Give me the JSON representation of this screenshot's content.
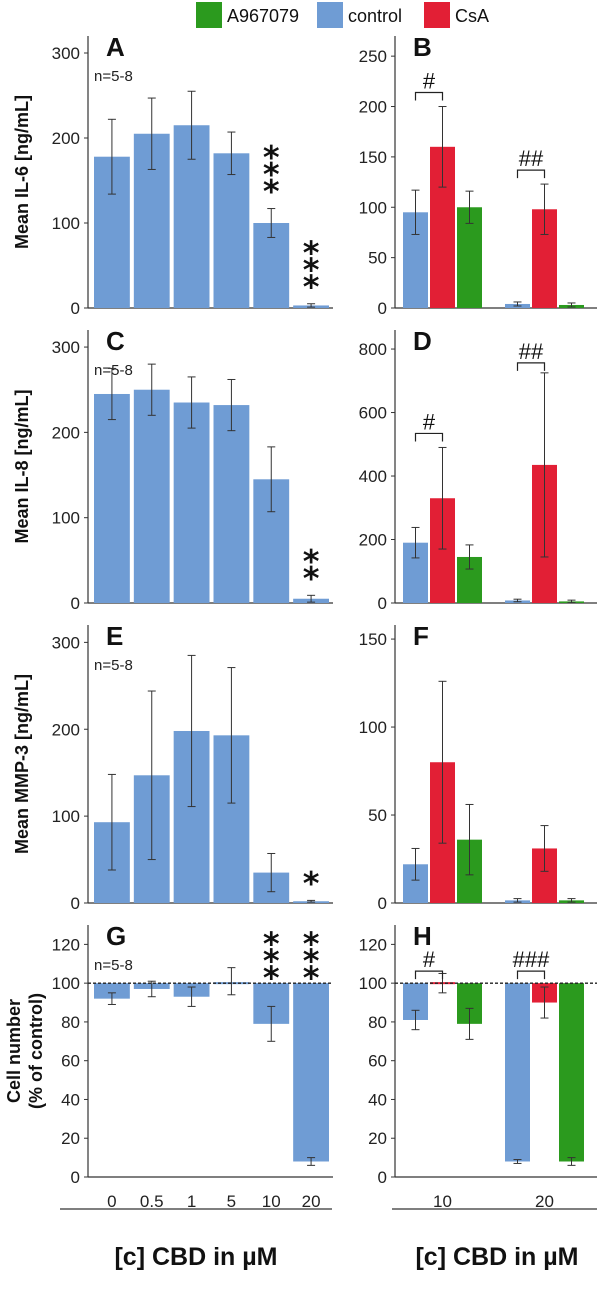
{
  "colors": {
    "control": "#6f9cd4",
    "csa": "#e21f35",
    "a967079": "#2b9a1e",
    "axis": "#333333",
    "error": "#333333"
  },
  "legend": [
    {
      "label": "A967079",
      "color": "#2b9a1e"
    },
    {
      "label": "control",
      "color": "#6f9cd4"
    },
    {
      "label": "CsA",
      "color": "#e21f35"
    }
  ],
  "xtitles": {
    "left": "[c] CBD in µM",
    "right": "[c] CBD in µM"
  },
  "chart_data": [
    {
      "id": "A",
      "letter": "A",
      "type": "bar",
      "n_label": "n=5-8",
      "ylabel": "Mean IL-6 [ng/mL]",
      "ylim": [
        0,
        320
      ],
      "yticks": [
        0,
        100,
        200,
        300
      ],
      "categories": [
        "0",
        "0.5",
        "1",
        "5",
        "10",
        "20"
      ],
      "series": [
        {
          "key": "control",
          "values": [
            178,
            205,
            215,
            182,
            100,
            3
          ],
          "errors": [
            44,
            42,
            40,
            25,
            17,
            2
          ]
        }
      ],
      "stars": [
        {
          "index": 4,
          "text": "***"
        },
        {
          "index": 5,
          "text": "***"
        }
      ]
    },
    {
      "id": "B",
      "letter": "B",
      "type": "bar",
      "ylim": [
        0,
        270
      ],
      "yticks": [
        0,
        50,
        100,
        150,
        200,
        250
      ],
      "groups": [
        "10",
        "20"
      ],
      "series": [
        {
          "key": "control",
          "values": [
            95,
            4
          ],
          "errors": [
            22,
            2
          ]
        },
        {
          "key": "csa",
          "values": [
            160,
            98
          ],
          "errors": [
            40,
            25
          ]
        },
        {
          "key": "a967079",
          "values": [
            100,
            3
          ],
          "errors": [
            16,
            2
          ]
        }
      ],
      "brackets": [
        {
          "group": 0,
          "text": "#"
        },
        {
          "group": 1,
          "text": "##"
        }
      ]
    },
    {
      "id": "C",
      "letter": "C",
      "type": "bar",
      "n_label": "n=5-8",
      "ylabel": "Mean IL-8 [ng/mL]",
      "ylim": [
        0,
        320
      ],
      "yticks": [
        0,
        100,
        200,
        300
      ],
      "categories": [
        "0",
        "0.5",
        "1",
        "5",
        "10",
        "20"
      ],
      "series": [
        {
          "key": "control",
          "values": [
            245,
            250,
            235,
            232,
            145,
            5
          ],
          "errors": [
            30,
            30,
            30,
            30,
            38,
            4
          ]
        }
      ],
      "stars": [
        {
          "index": 5,
          "text": "**"
        }
      ]
    },
    {
      "id": "D",
      "letter": "D",
      "type": "bar",
      "ylim": [
        0,
        860
      ],
      "yticks": [
        0,
        200,
        400,
        600,
        800
      ],
      "groups": [
        "10",
        "20"
      ],
      "series": [
        {
          "key": "control",
          "values": [
            190,
            8
          ],
          "errors": [
            48,
            4
          ]
        },
        {
          "key": "csa",
          "values": [
            330,
            435
          ],
          "errors": [
            160,
            290
          ]
        },
        {
          "key": "a967079",
          "values": [
            145,
            5
          ],
          "errors": [
            38,
            4
          ]
        }
      ],
      "brackets": [
        {
          "group": 0,
          "text": "#"
        },
        {
          "group": 1,
          "text": "##"
        }
      ]
    },
    {
      "id": "E",
      "letter": "E",
      "type": "bar",
      "n_label": "n=5-8",
      "ylabel": "Mean MMP-3 [ng/mL]",
      "ylim": [
        0,
        320
      ],
      "yticks": [
        0,
        100,
        200,
        300
      ],
      "categories": [
        "0",
        "0.5",
        "1",
        "5",
        "10",
        "20"
      ],
      "series": [
        {
          "key": "control",
          "values": [
            93,
            147,
            198,
            193,
            35,
            2
          ],
          "errors": [
            55,
            97,
            87,
            78,
            22,
            1
          ]
        }
      ],
      "stars": [
        {
          "index": 5,
          "text": "*"
        }
      ]
    },
    {
      "id": "F",
      "letter": "F",
      "type": "bar",
      "ylim": [
        0,
        158
      ],
      "yticks": [
        0,
        50,
        100,
        150
      ],
      "groups": [
        "10",
        "20"
      ],
      "series": [
        {
          "key": "control",
          "values": [
            22,
            1.5
          ],
          "errors": [
            9,
            1
          ]
        },
        {
          "key": "csa",
          "values": [
            80,
            31
          ],
          "errors": [
            46,
            13
          ]
        },
        {
          "key": "a967079",
          "values": [
            36,
            1.5
          ],
          "errors": [
            20,
            1
          ]
        }
      ]
    },
    {
      "id": "G",
      "letter": "G",
      "type": "bar",
      "n_label": "n=5-8",
      "ylabel": "Cell number (% of control)",
      "ylabel_lines": [
        "Cell number",
        "(% of control)"
      ],
      "ylim": [
        0,
        130
      ],
      "yticks": [
        0,
        20,
        40,
        60,
        80,
        100,
        120
      ],
      "baseline": 100,
      "categories": [
        "0",
        "0.5",
        "1",
        "5",
        "10",
        "20"
      ],
      "series": [
        {
          "key": "control",
          "values": [
            92,
            97,
            93,
            101,
            79,
            8
          ],
          "errors": [
            3,
            4,
            5,
            7,
            9,
            2
          ]
        }
      ],
      "stars": [
        {
          "index": 4,
          "text": "***"
        },
        {
          "index": 5,
          "text": "***"
        }
      ]
    },
    {
      "id": "H",
      "letter": "H",
      "type": "bar",
      "ylim": [
        0,
        130
      ],
      "yticks": [
        0,
        20,
        40,
        60,
        80,
        100,
        120
      ],
      "baseline": 100,
      "groups": [
        "10",
        "20"
      ],
      "series": [
        {
          "key": "control",
          "values": [
            81,
            8
          ],
          "errors": [
            5,
            1
          ]
        },
        {
          "key": "csa",
          "values": [
            100,
            90
          ],
          "errors": [
            5,
            8
          ]
        },
        {
          "key": "a967079",
          "values": [
            79,
            8
          ],
          "errors": [
            8,
            2
          ]
        }
      ],
      "brackets": [
        {
          "group": 0,
          "text": "#"
        },
        {
          "group": 1,
          "text": "###"
        }
      ]
    }
  ]
}
